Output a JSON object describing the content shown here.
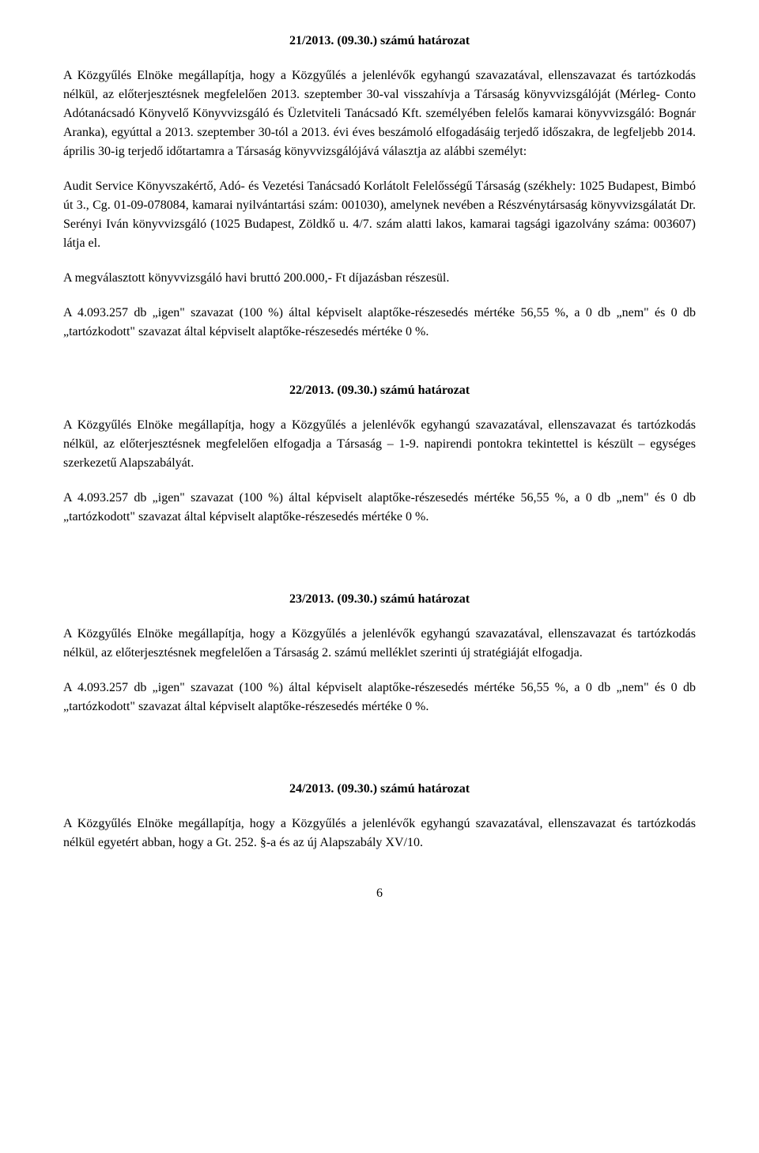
{
  "resolution21": {
    "title": "21/2013. (09.30.) számú határozat",
    "p1": "A Közgyűlés Elnöke megállapítja, hogy a Közgyűlés a jelenlévők egyhangú szavazatával, ellenszavazat és tartózkodás nélkül, az előterjesztésnek megfelelően 2013. szeptember 30-val visszahívja a Társaság könyvvizsgálóját (Mérleg- Conto Adótanácsadó Könyvelő Könyvvizsgáló és Üzletviteli Tanácsadó Kft. személyében felelős kamarai könyvvizsgáló: Bognár Aranka), egyúttal a 2013. szeptember 30-tól a 2013. évi éves beszámoló elfogadásáig terjedő időszakra, de legfeljebb 2014. április 30-ig terjedő időtartamra a Társaság könyvvizsgálójává választja az alábbi személyt:",
    "p2": "Audit Service Könyvszakértő, Adó- és Vezetési Tanácsadó Korlátolt Felelősségű Társaság (székhely: 1025 Budapest, Bimbó út 3., Cg. 01-09-078084, kamarai nyilvántartási szám: 001030), amelynek nevében a Részvénytársaság könyvvizsgálatát Dr. Serényi Iván könyvvizsgáló (1025 Budapest, Zöldkő u. 4/7. szám alatti lakos, kamarai tagsági igazolvány száma: 003607) látja el.",
    "p3": "A megválasztott könyvvizsgáló havi bruttó 200.000,- Ft díjazásban részesül.",
    "p4": "A 4.093.257 db „igen\" szavazat (100 %) által képviselt alaptőke-részesedés mértéke 56,55 %, a 0 db „nem\" és 0 db „tartózkodott\" szavazat által képviselt alaptőke-részesedés mértéke 0 %."
  },
  "resolution22": {
    "title": "22/2013. (09.30.) számú határozat",
    "p1": "A Közgyűlés Elnöke megállapítja, hogy a Közgyűlés a jelenlévők egyhangú szavazatával, ellenszavazat és tartózkodás nélkül, az előterjesztésnek megfelelően elfogadja a Társaság – 1-9. napirendi pontokra tekintettel is készült – egységes szerkezetű Alapszabályát.",
    "p2": "A 4.093.257 db „igen\" szavazat (100 %) által képviselt alaptőke-részesedés mértéke 56,55 %, a 0 db „nem\" és 0 db „tartózkodott\" szavazat által képviselt alaptőke-részesedés mértéke 0 %."
  },
  "resolution23": {
    "title": "23/2013. (09.30.) számú határozat",
    "p1": "A Közgyűlés Elnöke megállapítja, hogy a Közgyűlés a jelenlévők egyhangú szavazatával, ellenszavazat és tartózkodás nélkül, az előterjesztésnek megfelelően a Társaság 2. számú melléklet szerinti új stratégiáját elfogadja.",
    "p2": "A 4.093.257 db „igen\" szavazat (100 %) által képviselt alaptőke-részesedés mértéke 56,55 %, a 0 db „nem\" és 0 db „tartózkodott\" szavazat által képviselt alaptőke-részesedés mértéke 0 %."
  },
  "resolution24": {
    "title": "24/2013. (09.30.) számú határozat",
    "p1": "A Közgyűlés Elnöke megállapítja, hogy a Közgyűlés a jelenlévők egyhangú szavazatával, ellenszavazat és tartózkodás nélkül egyetért abban, hogy a Gt. 252. §-a és az új Alapszabály XV/10."
  },
  "pageNumber": "6"
}
